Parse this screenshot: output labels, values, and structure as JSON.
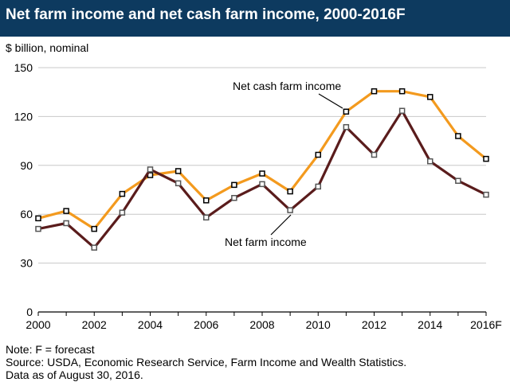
{
  "chart_data": {
    "type": "line",
    "title": "Net farm income and net cash farm income, 2000-2016F",
    "ylabel": "$ billion, nominal",
    "xlabel": "",
    "x": [
      2000,
      2001,
      2002,
      2003,
      2004,
      2005,
      2006,
      2007,
      2008,
      2009,
      2010,
      2011,
      2012,
      2013,
      2014,
      2015,
      2016
    ],
    "x_tick_labels": [
      "2000",
      "2002",
      "2004",
      "2006",
      "2008",
      "2010",
      "2012",
      "2014",
      "2016F"
    ],
    "x_tick_values": [
      2000,
      2002,
      2004,
      2006,
      2008,
      2010,
      2012,
      2014,
      2016
    ],
    "y_ticks": [
      0,
      30,
      60,
      90,
      120,
      150
    ],
    "ylim": [
      0,
      150
    ],
    "xlim": [
      2000,
      2016
    ],
    "grid": "horizontal",
    "series": [
      {
        "name": "Net cash farm income",
        "color": "#f39a1e",
        "values": [
          57.5,
          62,
          51,
          72.5,
          84,
          86.5,
          68.5,
          78,
          85,
          74,
          96.5,
          123,
          135.5,
          135.5,
          132,
          108,
          94
        ]
      },
      {
        "name": "Net farm income",
        "color": "#5a1c1c",
        "values": [
          51,
          54.5,
          39.5,
          61,
          87.5,
          79,
          58,
          70,
          78.5,
          62.5,
          77,
          113.5,
          96.5,
          123.5,
          92.5,
          80.5,
          72
        ]
      }
    ]
  },
  "notes": {
    "line1": "Note: F = forecast",
    "line2": "Source: USDA, Economic Research Service, Farm Income and Wealth Statistics.",
    "line3": "Data as of August 30, 2016."
  }
}
